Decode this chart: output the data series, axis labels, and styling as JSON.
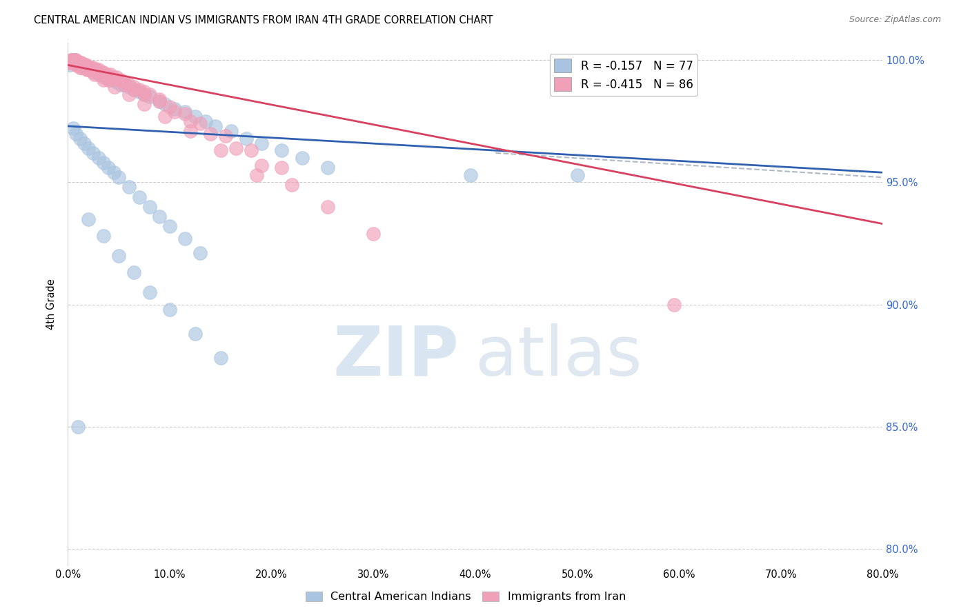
{
  "title": "CENTRAL AMERICAN INDIAN VS IMMIGRANTS FROM IRAN 4TH GRADE CORRELATION CHART",
  "source": "Source: ZipAtlas.com",
  "ylabel": "4th Grade",
  "xlim": [
    0.0,
    0.8
  ],
  "ylim": [
    0.793,
    1.007
  ],
  "blue_R": -0.157,
  "blue_N": 77,
  "pink_R": -0.415,
  "pink_N": 86,
  "blue_color": "#a8c4e0",
  "pink_color": "#f0a0b8",
  "blue_line_color": "#3060b0",
  "pink_line_color": "#d84060",
  "dashed_line_color": "#b0b8c8",
  "watermark_zip_color": "#c8d8ee",
  "watermark_atlas_color": "#b8cce0",
  "legend_label_blue": "Central American Indians",
  "legend_label_pink": "Immigrants from Iran",
  "y_ticks": [
    0.8,
    0.85,
    0.9,
    0.95,
    1.0
  ],
  "y_tick_labels": [
    "80.0%",
    "85.0%",
    "90.0%",
    "95.0%",
    "100.0%"
  ],
  "x_ticks": [
    0.0,
    0.1,
    0.2,
    0.3,
    0.4,
    0.5,
    0.6,
    0.7,
    0.8
  ],
  "x_tick_labels": [
    "0.0%",
    "10.0%",
    "20.0%",
    "30.0%",
    "40.0%",
    "50.0%",
    "60.0%",
    "70.0%",
    "80.0%"
  ],
  "blue_trend_x": [
    0.0,
    0.8
  ],
  "blue_trend_y": [
    0.973,
    0.954
  ],
  "pink_trend_x": [
    0.0,
    0.8
  ],
  "pink_trend_y": [
    0.998,
    0.933
  ],
  "dash_trend_x": [
    0.42,
    0.8
  ],
  "dash_trend_y": [
    0.962,
    0.952
  ],
  "blue_x": [
    0.002,
    0.003,
    0.004,
    0.005,
    0.006,
    0.007,
    0.008,
    0.009,
    0.01,
    0.011,
    0.012,
    0.013,
    0.014,
    0.015,
    0.016,
    0.018,
    0.02,
    0.022,
    0.025,
    0.028,
    0.03,
    0.032,
    0.035,
    0.038,
    0.042,
    0.045,
    0.048,
    0.052,
    0.055,
    0.06,
    0.065,
    0.07,
    0.075,
    0.08,
    0.09,
    0.095,
    0.105,
    0.115,
    0.125,
    0.135,
    0.145,
    0.16,
    0.175,
    0.19,
    0.21,
    0.23,
    0.255,
    0.005,
    0.008,
    0.012,
    0.016,
    0.02,
    0.025,
    0.03,
    0.035,
    0.04,
    0.045,
    0.05,
    0.06,
    0.07,
    0.08,
    0.09,
    0.1,
    0.115,
    0.13,
    0.02,
    0.035,
    0.05,
    0.065,
    0.08,
    0.1,
    0.125,
    0.15,
    0.395,
    0.5,
    0.01
  ],
  "blue_y": [
    0.998,
    0.999,
    1.0,
    1.0,
    1.0,
    1.0,
    0.999,
    0.999,
    0.999,
    0.999,
    0.999,
    0.998,
    0.998,
    0.998,
    0.997,
    0.997,
    0.997,
    0.996,
    0.996,
    0.995,
    0.995,
    0.994,
    0.994,
    0.993,
    0.992,
    0.992,
    0.991,
    0.99,
    0.99,
    0.989,
    0.988,
    0.987,
    0.986,
    0.985,
    0.983,
    0.982,
    0.98,
    0.979,
    0.977,
    0.975,
    0.973,
    0.971,
    0.968,
    0.966,
    0.963,
    0.96,
    0.956,
    0.972,
    0.97,
    0.968,
    0.966,
    0.964,
    0.962,
    0.96,
    0.958,
    0.956,
    0.954,
    0.952,
    0.948,
    0.944,
    0.94,
    0.936,
    0.932,
    0.927,
    0.921,
    0.935,
    0.928,
    0.92,
    0.913,
    0.905,
    0.898,
    0.888,
    0.878,
    0.953,
    0.953,
    0.85
  ],
  "pink_x": [
    0.002,
    0.003,
    0.004,
    0.005,
    0.006,
    0.007,
    0.008,
    0.009,
    0.01,
    0.011,
    0.012,
    0.013,
    0.014,
    0.015,
    0.016,
    0.018,
    0.02,
    0.022,
    0.025,
    0.028,
    0.03,
    0.032,
    0.035,
    0.038,
    0.042,
    0.045,
    0.048,
    0.052,
    0.055,
    0.06,
    0.065,
    0.07,
    0.075,
    0.08,
    0.09,
    0.1,
    0.115,
    0.13,
    0.155,
    0.18,
    0.21,
    0.005,
    0.008,
    0.012,
    0.016,
    0.02,
    0.025,
    0.03,
    0.035,
    0.04,
    0.003,
    0.006,
    0.009,
    0.013,
    0.017,
    0.022,
    0.027,
    0.033,
    0.04,
    0.048,
    0.056,
    0.065,
    0.075,
    0.09,
    0.105,
    0.12,
    0.14,
    0.165,
    0.19,
    0.22,
    0.255,
    0.3,
    0.004,
    0.008,
    0.013,
    0.019,
    0.026,
    0.035,
    0.046,
    0.06,
    0.075,
    0.095,
    0.12,
    0.15,
    0.185,
    0.595
  ],
  "pink_y": [
    0.999,
    1.0,
    1.0,
    1.0,
    1.0,
    1.0,
    1.0,
    0.999,
    0.999,
    0.999,
    0.999,
    0.999,
    0.998,
    0.998,
    0.998,
    0.998,
    0.997,
    0.997,
    0.997,
    0.996,
    0.996,
    0.995,
    0.995,
    0.994,
    0.994,
    0.993,
    0.993,
    0.992,
    0.991,
    0.99,
    0.989,
    0.988,
    0.987,
    0.986,
    0.984,
    0.981,
    0.978,
    0.974,
    0.969,
    0.963,
    0.956,
    0.999,
    0.998,
    0.997,
    0.997,
    0.996,
    0.995,
    0.994,
    0.993,
    0.992,
    0.999,
    0.999,
    0.998,
    0.998,
    0.997,
    0.997,
    0.996,
    0.995,
    0.993,
    0.992,
    0.99,
    0.988,
    0.986,
    0.983,
    0.979,
    0.975,
    0.97,
    0.964,
    0.957,
    0.949,
    0.94,
    0.929,
    0.999,
    0.998,
    0.997,
    0.996,
    0.994,
    0.992,
    0.989,
    0.986,
    0.982,
    0.977,
    0.971,
    0.963,
    0.953,
    0.9
  ]
}
